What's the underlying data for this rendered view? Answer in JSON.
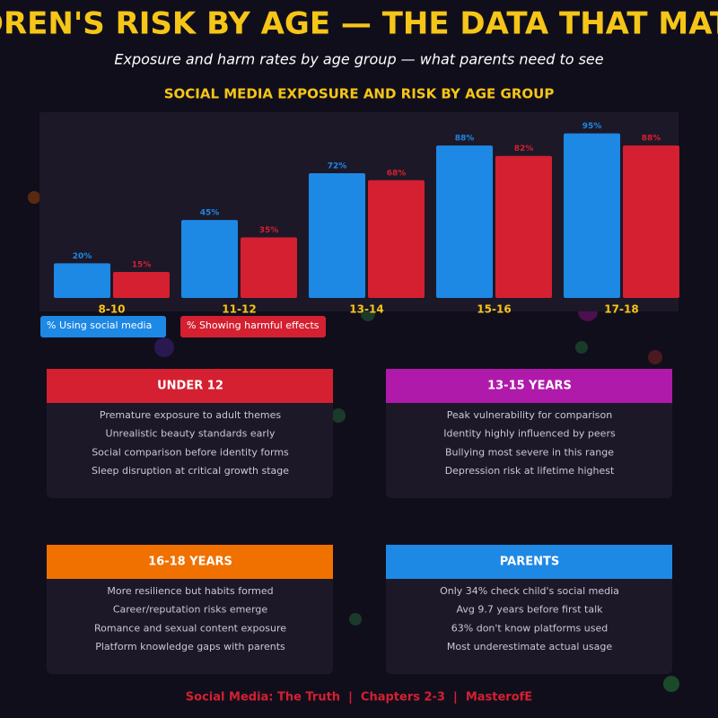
{
  "header": {
    "title": "CHILDREN'S RISK BY AGE — THE DATA THAT MATTERS",
    "subtitle": "Exposure and harm rates by age group — what parents need to see"
  },
  "chart_data": {
    "type": "bar",
    "title": "SOCIAL MEDIA EXPOSURE AND RISK BY AGE GROUP",
    "categories": [
      "8-10",
      "11-12",
      "13-14",
      "15-16",
      "17-18"
    ],
    "series": [
      {
        "name": "% Using social media",
        "color": "#1e88e5",
        "values": [
          20,
          45,
          72,
          88,
          95
        ],
        "value_labels": [
          "20%",
          "45%",
          "72%",
          "88%",
          "95%"
        ]
      },
      {
        "name": "% Showing harmful effects",
        "color": "#d42030",
        "values": [
          15,
          35,
          68,
          82,
          88
        ],
        "value_labels": [
          "15%",
          "35%",
          "68%",
          "82%",
          "88%"
        ]
      }
    ]
  },
  "cards": [
    {
      "title": "UNDER 12",
      "color": "#d42030",
      "items": [
        "Premature exposure to adult themes",
        "Unrealistic beauty standards early",
        "Social comparison before identity forms",
        "Sleep disruption at critical growth stage"
      ]
    },
    {
      "title": "13-15 YEARS",
      "color": "#b01aaa",
      "items": [
        "Peak vulnerability for comparison",
        "Identity highly influenced by peers",
        "Bullying most severe in this range",
        "Depression risk at lifetime highest"
      ]
    },
    {
      "title": "16-18 YEARS",
      "color": "#f07000",
      "items": [
        "More resilience but habits formed",
        "Career/reputation risks emerge",
        "Romance and sexual content exposure",
        "Platform knowledge gaps with parents"
      ]
    },
    {
      "title": "PARENTS",
      "color": "#1e88e5",
      "items": [
        "Only 34% check child's social media",
        "Avg 9.7 years before first talk",
        "63% don't know platforms used",
        "Most underestimate actual usage"
      ]
    }
  ],
  "footer": "Social Media: The Truth  |  Chapters 2-3  |  MasterofE"
}
